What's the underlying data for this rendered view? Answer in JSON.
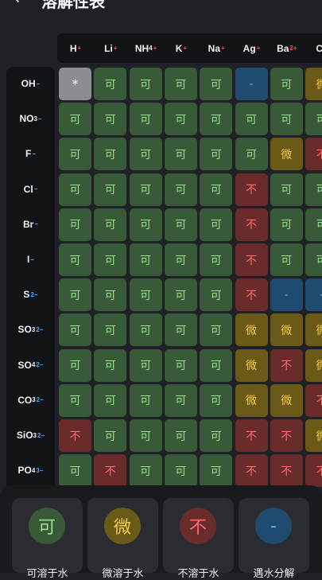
{
  "header": {
    "title": "溶解性表",
    "back_icon": "arrow-left-icon"
  },
  "columns": [
    {
      "base": "H",
      "sub": "",
      "charge": "+"
    },
    {
      "base": "Li",
      "sub": "",
      "charge": "+"
    },
    {
      "base": "NH",
      "sub": "4",
      "charge": "+"
    },
    {
      "base": "K",
      "sub": "",
      "charge": "+"
    },
    {
      "base": "Na",
      "sub": "",
      "charge": "+"
    },
    {
      "base": "Ag",
      "sub": "",
      "charge": "+"
    },
    {
      "base": "Ba",
      "sub": "",
      "charge": "2+"
    },
    {
      "base": "Ca",
      "sub": "",
      "charge": ""
    }
  ],
  "rows": [
    {
      "base": "OH",
      "sub": "",
      "charge": "−",
      "cells": [
        "*",
        "可",
        "可",
        "可",
        "可",
        "-",
        "可",
        "微"
      ]
    },
    {
      "base": "NO",
      "sub": "3",
      "charge": "−",
      "cells": [
        "可",
        "可",
        "可",
        "可",
        "可",
        "可",
        "可",
        "可"
      ]
    },
    {
      "base": "F",
      "sub": "",
      "charge": "−",
      "cells": [
        "可",
        "可",
        "可",
        "可",
        "可",
        "可",
        "微",
        "不"
      ]
    },
    {
      "base": "Cl",
      "sub": "",
      "charge": "−",
      "cells": [
        "可",
        "可",
        "可",
        "可",
        "可",
        "不",
        "可",
        "可"
      ]
    },
    {
      "base": "Br",
      "sub": "",
      "charge": "−",
      "cells": [
        "可",
        "可",
        "可",
        "可",
        "可",
        "不",
        "可",
        "可"
      ]
    },
    {
      "base": "I",
      "sub": "",
      "charge": "−",
      "cells": [
        "可",
        "可",
        "可",
        "可",
        "可",
        "不",
        "可",
        "可"
      ]
    },
    {
      "base": "S",
      "sub": "",
      "charge": "2−",
      "cells": [
        "可",
        "可",
        "可",
        "可",
        "可",
        "不",
        "-",
        "-"
      ]
    },
    {
      "base": "SO",
      "sub": "3",
      "charge": "2−",
      "cells": [
        "可",
        "可",
        "可",
        "可",
        "可",
        "微",
        "微",
        "微"
      ]
    },
    {
      "base": "SO",
      "sub": "4",
      "charge": "2−",
      "cells": [
        "可",
        "可",
        "可",
        "可",
        "可",
        "微",
        "不",
        "微"
      ]
    },
    {
      "base": "CO",
      "sub": "3",
      "charge": "2−",
      "cells": [
        "可",
        "可",
        "可",
        "可",
        "可",
        "微",
        "微",
        "不"
      ]
    },
    {
      "base": "SiO",
      "sub": "3",
      "charge": "2−",
      "cells": [
        "不",
        "可",
        "可",
        "可",
        "可",
        "不",
        "不",
        "微"
      ]
    },
    {
      "base": "PO",
      "sub": "4",
      "charge": "3−",
      "cells": [
        "可",
        "不",
        "可",
        "可",
        "可",
        "不",
        "不",
        "不"
      ]
    }
  ],
  "legend": [
    {
      "symbol": "可",
      "label": "可溶于水",
      "color": "#385a39",
      "text_color": "#9be28f"
    },
    {
      "symbol": "微",
      "label": "微溶于水",
      "color": "#6b5a17",
      "text_color": "#f2c94c"
    },
    {
      "symbol": "不",
      "label": "不溶于水",
      "color": "#6a2b2b",
      "text_color": "#ff6a6a"
    },
    {
      "symbol": "-",
      "label": "遇水分解",
      "color": "#1f4b6e",
      "text_color": "#55b8ff"
    }
  ],
  "colors": {
    "soluble": "#385a39",
    "slightly": "#6b5a17",
    "insoluble": "#6a2b2b",
    "decomposes": "#1f4b6e",
    "na": "#8a8d92",
    "cation_charge": "#ff4a4a",
    "anion_charge": "#3ab0ff"
  }
}
